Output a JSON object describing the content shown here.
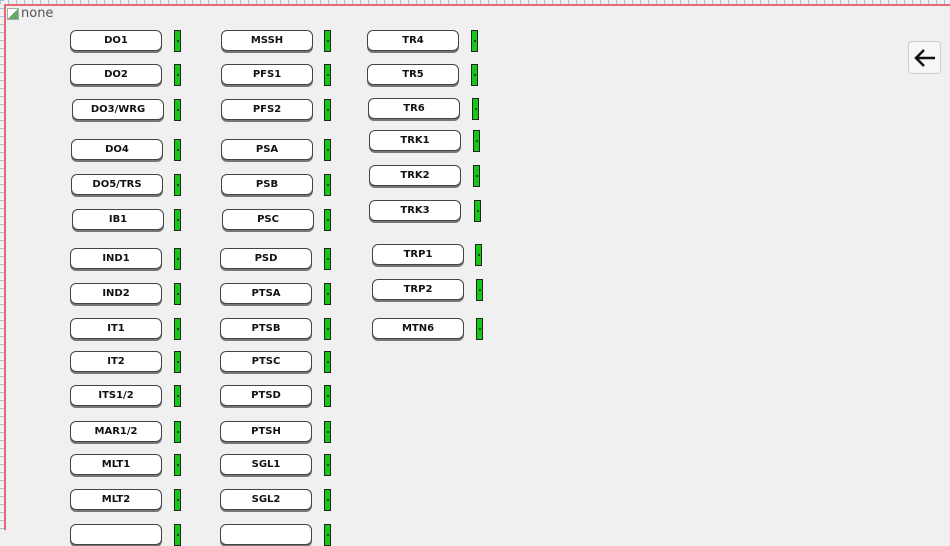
{
  "broken_image_alt": "none",
  "back_button": {
    "icon": "arrow-left-icon"
  },
  "indicator_color": "#16c816",
  "columns": [
    [
      "DO1",
      "DO2",
      "DO3/WRG",
      "DO4",
      "DO5/TRS",
      "IB1",
      "IND1",
      "IND2",
      "IT1",
      "IT2",
      "ITS1/2",
      "MAR1/2",
      "MLT1",
      "MLT2"
    ],
    [
      "MSSH",
      "PFS1",
      "PFS2",
      "PSA",
      "PSB",
      "PSC",
      "PSD",
      "PTSA",
      "PTSB",
      "PTSC",
      "PTSD",
      "PTSH",
      "SGL1",
      "SGL2"
    ],
    [
      "TR4",
      "TR5",
      "TR6",
      "TRK1",
      "TRK2",
      "TRK3",
      "TRP1",
      "TRP2",
      "MTN6"
    ]
  ]
}
